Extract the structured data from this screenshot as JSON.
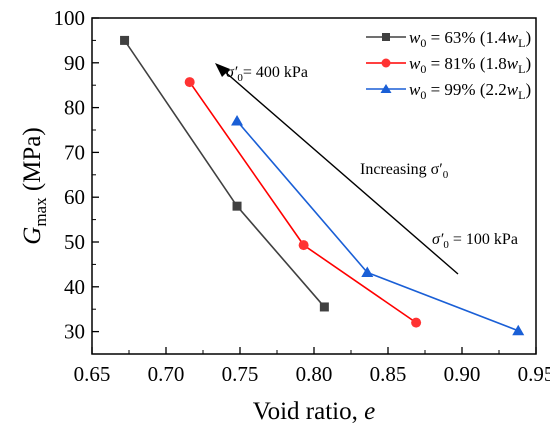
{
  "chart_data": {
    "type": "line",
    "xlabel": "Void ratio, e",
    "xlabel_parts": {
      "main": "Void ratio, ",
      "var": "e"
    },
    "ylabel_parts": {
      "var": "G",
      "sub": "max",
      "rest": " (MPa)"
    },
    "xlim": [
      0.65,
      0.95
    ],
    "ylim": [
      25,
      100
    ],
    "xticks": [
      0.65,
      0.7,
      0.75,
      0.8,
      0.85,
      0.9,
      0.95
    ],
    "xtick_labels": [
      "0.65",
      "0.70",
      "0.75",
      "0.80",
      "0.85",
      "0.90",
      "0.95"
    ],
    "yticks": [
      30,
      40,
      50,
      60,
      70,
      80,
      90,
      100
    ],
    "ytick_labels": [
      "30",
      "40",
      "50",
      "60",
      "70",
      "80",
      "90",
      "100"
    ],
    "legend_position": "top-right",
    "series": [
      {
        "name": "w0 = 63% (1.4wL)",
        "legend": {
          "v": "w",
          "vs": "0",
          "m": " = 63% (1.4",
          "v2": "w",
          "v2s": "L",
          "e": ")"
        },
        "color": "#404040",
        "marker": "square",
        "x": [
          0.672,
          0.748,
          0.807
        ],
        "y": [
          95,
          58,
          35.5
        ]
      },
      {
        "name": "w0 = 81% (1.8wL)",
        "legend": {
          "v": "w",
          "vs": "0",
          "m": " = 81% (1.8",
          "v2": "w",
          "v2s": "L",
          "e": ")"
        },
        "color": "#ff0000",
        "marker": "circle",
        "x": [
          0.716,
          0.793,
          0.869
        ],
        "y": [
          85.7,
          49.3,
          32
        ]
      },
      {
        "name": "w0 = 99% (2.2wL)",
        "legend": {
          "v": "w",
          "vs": "0",
          "m": " = 99% (2.2",
          "v2": "w",
          "v2s": "L",
          "e": ")"
        },
        "color": "#1a5fd6",
        "marker": "triangle",
        "x": [
          0.748,
          0.836,
          0.938
        ],
        "y": [
          77,
          43.2,
          30.2
        ]
      }
    ],
    "annotations": [
      {
        "id": "sigma400",
        "pre": "σ′",
        "sub": "0",
        "post": "= 400 kPa"
      },
      {
        "id": "increasing",
        "pre": "Increasing σ′",
        "sub": "0",
        "post": ""
      },
      {
        "id": "sigma100",
        "pre": "σ′",
        "sub": "0",
        "post": " = 100 kPa"
      }
    ]
  }
}
